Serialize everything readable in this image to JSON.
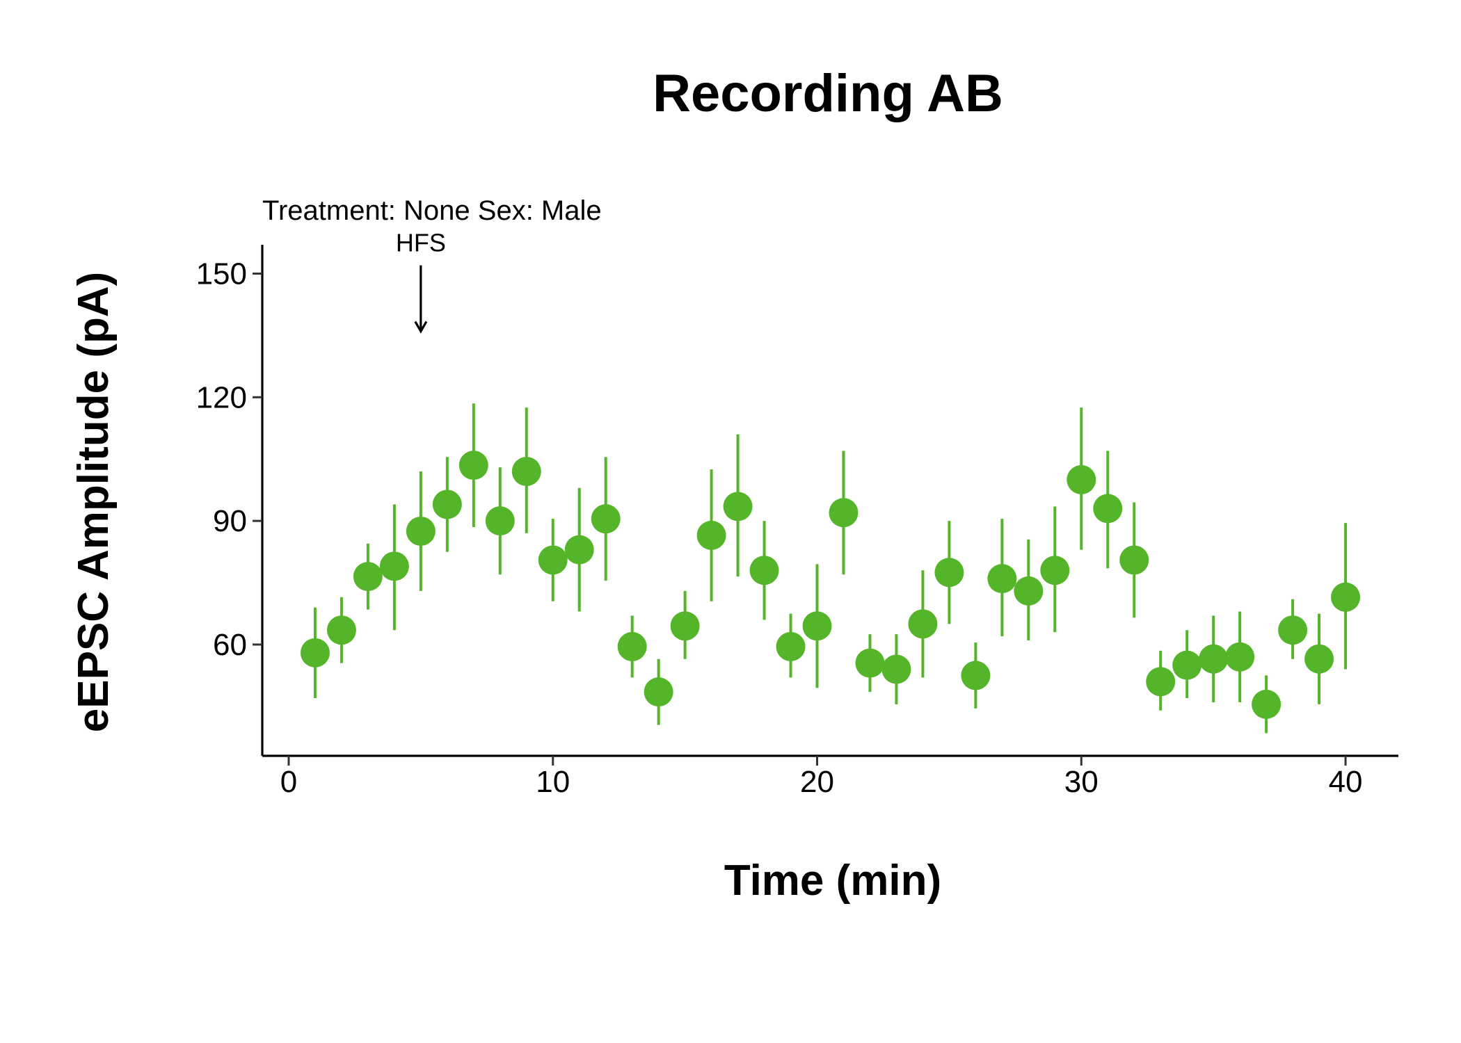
{
  "chart_data": {
    "type": "scatter",
    "title": "Recording AB",
    "subtitle": "Treatment: None  Sex: Male",
    "xlabel": "Time (min)",
    "ylabel": "eEPSC Amplitude (pA)",
    "xlim": [
      -1,
      42
    ],
    "ylim": [
      33,
      157
    ],
    "x_ticks": [
      0,
      10,
      20,
      30,
      40
    ],
    "y_ticks": [
      60,
      90,
      120,
      150
    ],
    "grid": false,
    "point_color": "#55B52A",
    "annotation": {
      "text": "HFS",
      "x": 5,
      "arrow_from_y": 152,
      "arrow_to_y": 136
    },
    "series": [
      {
        "points": [
          {
            "x": 1,
            "y": 58,
            "ymin": 47,
            "ymax": 69
          },
          {
            "x": 2,
            "y": 63.5,
            "ymin": 55.5,
            "ymax": 71.5
          },
          {
            "x": 3,
            "y": 76.5,
            "ymin": 68.5,
            "ymax": 84.5
          },
          {
            "x": 4,
            "y": 79,
            "ymin": 63.5,
            "ymax": 94
          },
          {
            "x": 5,
            "y": 87.5,
            "ymin": 73,
            "ymax": 102
          },
          {
            "x": 6,
            "y": 94,
            "ymin": 82.5,
            "ymax": 105.5
          },
          {
            "x": 7,
            "y": 103.5,
            "ymin": 88.5,
            "ymax": 118.5
          },
          {
            "x": 8,
            "y": 90,
            "ymin": 77,
            "ymax": 103
          },
          {
            "x": 9,
            "y": 102,
            "ymin": 87,
            "ymax": 117.5
          },
          {
            "x": 10,
            "y": 80.5,
            "ymin": 70.5,
            "ymax": 90.5
          },
          {
            "x": 11,
            "y": 83,
            "ymin": 68,
            "ymax": 98
          },
          {
            "x": 12,
            "y": 90.5,
            "ymin": 75.5,
            "ymax": 105.5
          },
          {
            "x": 13,
            "y": 59.5,
            "ymin": 52,
            "ymax": 67
          },
          {
            "x": 14,
            "y": 48.5,
            "ymin": 40.5,
            "ymax": 56.5
          },
          {
            "x": 15,
            "y": 64.5,
            "ymin": 56.5,
            "ymax": 73
          },
          {
            "x": 16,
            "y": 86.5,
            "ymin": 70.5,
            "ymax": 102.5
          },
          {
            "x": 17,
            "y": 93.5,
            "ymin": 76.5,
            "ymax": 111
          },
          {
            "x": 18,
            "y": 78,
            "ymin": 66,
            "ymax": 90
          },
          {
            "x": 19,
            "y": 59.5,
            "ymin": 52,
            "ymax": 67.5
          },
          {
            "x": 20,
            "y": 64.5,
            "ymin": 49.5,
            "ymax": 79.5
          },
          {
            "x": 21,
            "y": 92,
            "ymin": 77,
            "ymax": 107
          },
          {
            "x": 22,
            "y": 55.5,
            "ymin": 48.5,
            "ymax": 62.5
          },
          {
            "x": 23,
            "y": 54,
            "ymin": 45.5,
            "ymax": 62.5
          },
          {
            "x": 24,
            "y": 65,
            "ymin": 52,
            "ymax": 78
          },
          {
            "x": 25,
            "y": 77.5,
            "ymin": 65,
            "ymax": 90
          },
          {
            "x": 26,
            "y": 52.5,
            "ymin": 44.5,
            "ymax": 60.5
          },
          {
            "x": 27,
            "y": 76,
            "ymin": 62,
            "ymax": 90.5
          },
          {
            "x": 28,
            "y": 73,
            "ymin": 61,
            "ymax": 85.5
          },
          {
            "x": 29,
            "y": 78,
            "ymin": 63,
            "ymax": 93.5
          },
          {
            "x": 30,
            "y": 100,
            "ymin": 83,
            "ymax": 117.5
          },
          {
            "x": 31,
            "y": 93,
            "ymin": 78.5,
            "ymax": 107
          },
          {
            "x": 32,
            "y": 80.5,
            "ymin": 66.5,
            "ymax": 94.5
          },
          {
            "x": 33,
            "y": 51,
            "ymin": 44,
            "ymax": 58.5
          },
          {
            "x": 34,
            "y": 55,
            "ymin": 47,
            "ymax": 63.5
          },
          {
            "x": 35,
            "y": 56.5,
            "ymin": 46,
            "ymax": 67
          },
          {
            "x": 36,
            "y": 57,
            "ymin": 46,
            "ymax": 68
          },
          {
            "x": 37,
            "y": 45.5,
            "ymin": 38.5,
            "ymax": 52.5
          },
          {
            "x": 38,
            "y": 63.5,
            "ymin": 56.5,
            "ymax": 71
          },
          {
            "x": 39,
            "y": 56.5,
            "ymin": 45.5,
            "ymax": 67.5
          },
          {
            "x": 40,
            "y": 71.5,
            "ymin": 54,
            "ymax": 89.5
          }
        ]
      }
    ]
  }
}
